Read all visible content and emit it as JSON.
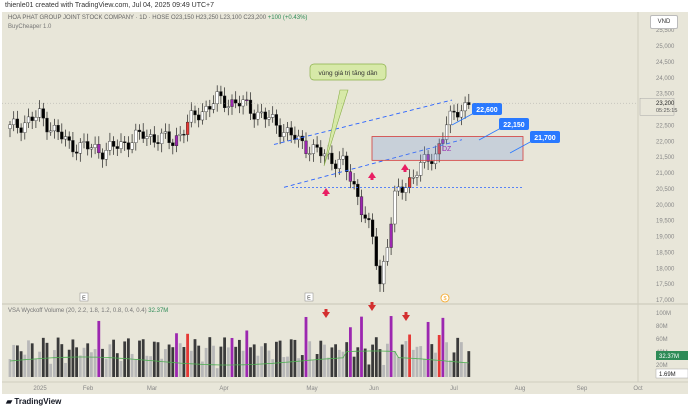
{
  "top_bar": {
    "credit": "thienle01 created with TradingView.com, Jul 04, 2025 09:49 UTC+7"
  },
  "symbol": {
    "name": "HOA PHAT GROUP JOINT STOCK COMPANY · 1D · HOSE",
    "ohlc": [
      "O23,150",
      "H23,250",
      "L23,100",
      "C23,200",
      "+100 (+0.43%)"
    ],
    "indicator": "BuyCheaper 1.0"
  },
  "currency": "VND",
  "volume_legend": {
    "label": "VSA Wyckoff Volume (20, 2.2, 1.8, 1.2, 0.8, 0.4, 0.4)",
    "value": "32.37M"
  },
  "price_axis": {
    "ticks": [
      "25,500",
      "25,000",
      "24,500",
      "24,000",
      "23,500",
      "23,000",
      "22,500",
      "22,000",
      "21,500",
      "21,000",
      "20,500",
      "20,000",
      "19,500",
      "19,000",
      "18,500",
      "18,000",
      "17,500",
      "17,000"
    ],
    "last_price": "23,200",
    "countdown": "05:25:15"
  },
  "volume_axis": {
    "ticks": [
      "100M",
      "80M",
      "60M",
      "40M",
      "20M"
    ],
    "current": "32.37M",
    "low": "1.69M"
  },
  "time_axis": {
    "ticks": [
      "2025",
      "Feb",
      "Mar",
      "Apr",
      "May",
      "Jun",
      "Jul",
      "Aug",
      "Sep",
      "Oct"
    ]
  },
  "annotations": {
    "callout": "vùng giá trị tăng dần",
    "dz_label": "DZ",
    "level_labels": [
      "22,600",
      "22,150",
      "21,700"
    ],
    "earnings_marker": "E",
    "dividend_marker": "$"
  },
  "colors": {
    "background": "#e8e6d9",
    "bar_up": "#ffffff",
    "bar_down": "#000000",
    "highlight": "#9c27b0",
    "climax": "#e53935",
    "trend_line": "#2962ff",
    "label_blue": "#2979ff",
    "arrow": "#e91e63",
    "volume_ma": "#4caf50"
  },
  "footer": {
    "brand": "TradingView"
  }
}
